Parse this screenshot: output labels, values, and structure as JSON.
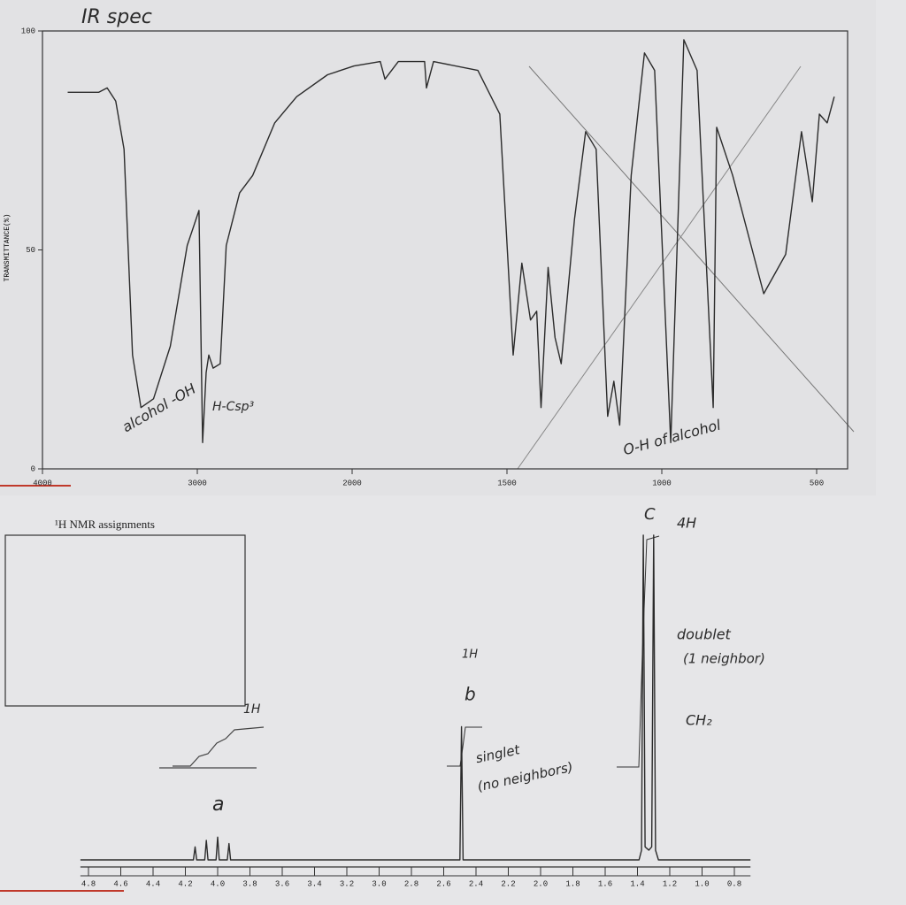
{
  "chart_data": [
    {
      "type": "line",
      "y_label": "TRANSMITTANCE(%)",
      "annotations": [
        "IR spec",
        "alcohol -OH",
        "H-Csp³",
        "O-H of alcohol"
      ],
      "x": [
        3837,
        3636,
        3582,
        3527,
        3473,
        3418,
        3364,
        3283,
        3174,
        3065,
        2989,
        2966,
        2943,
        2926,
        2898,
        2852,
        2813,
        2727,
        2642,
        2500,
        2358,
        2159,
        1994,
        1909,
        1894,
        1851,
        1766,
        1760,
        1737,
        1594,
        1523,
        1480,
        1452,
        1424,
        1404,
        1390,
        1367,
        1345,
        1325,
        1282,
        1246,
        1212,
        1175,
        1155,
        1136,
        1099,
        1056,
        1023,
        971,
        929,
        886,
        834,
        823,
        771,
        671,
        600,
        549,
        514,
        491,
        466,
        443
      ],
      "values": [
        86,
        86,
        87,
        84,
        73,
        26,
        14,
        16,
        28,
        51,
        59,
        6,
        22,
        26,
        23,
        24,
        51,
        63,
        67,
        79,
        85,
        90,
        92,
        93,
        89,
        93,
        93,
        87,
        93,
        91,
        81,
        26,
        47,
        34,
        36,
        14,
        46,
        30,
        24,
        57,
        77,
        73,
        12,
        20,
        10,
        67,
        95,
        91,
        6,
        98,
        91,
        14,
        78,
        67,
        40,
        49,
        77,
        61,
        81,
        79,
        85
      ],
      "color": "#2b2b2b",
      "xlim": [
        4000,
        400
      ],
      "xticks": [
        4000,
        3000,
        2000,
        1500,
        1000,
        500
      ],
      "ylim": [
        0,
        100
      ],
      "yticks": [
        0,
        50,
        100
      ]
    },
    {
      "type": "line",
      "title": "¹H NMR assignments",
      "annotations": [
        "1H",
        "a",
        "1H",
        "b",
        "singlet",
        "(no neighbors)",
        "C",
        "4H",
        "doublet",
        "(1 neighbor)",
        "CH₂"
      ],
      "x": [
        4.85,
        4.2,
        4.15,
        4.14,
        4.13,
        4.08,
        4.07,
        4.06,
        4.01,
        4.0,
        3.99,
        3.94,
        3.93,
        3.92,
        3.85,
        2.52,
        2.5,
        2.49,
        2.48,
        2.46,
        1.39,
        1.375,
        1.364,
        1.353,
        1.33,
        1.312,
        1.3,
        1.288,
        1.27,
        0.7
      ],
      "values": [
        0,
        0,
        0,
        4,
        0,
        0,
        6,
        0,
        0,
        7,
        0,
        0,
        5,
        0,
        0,
        0,
        0,
        41,
        0,
        0,
        0,
        3,
        100,
        4,
        3,
        4,
        100,
        3,
        0,
        0
      ],
      "color": "#2b2b2b",
      "xlim": [
        4.85,
        0.7
      ],
      "xticks": [
        4.8,
        4.6,
        4.4,
        4.2,
        {
          "value": 4,
          "label": "4.0"
        },
        3.8,
        3.6,
        3.4,
        3.2,
        {
          "value": 3,
          "label": "3.0"
        },
        2.8,
        2.6,
        2.4,
        2.2,
        {
          "value": 2,
          "label": "2.0"
        },
        1.8,
        1.6,
        1.4,
        1.2,
        {
          "value": 1,
          "label": "1.0"
        },
        0.8
      ],
      "ylim": [
        0,
        100
      ]
    }
  ]
}
